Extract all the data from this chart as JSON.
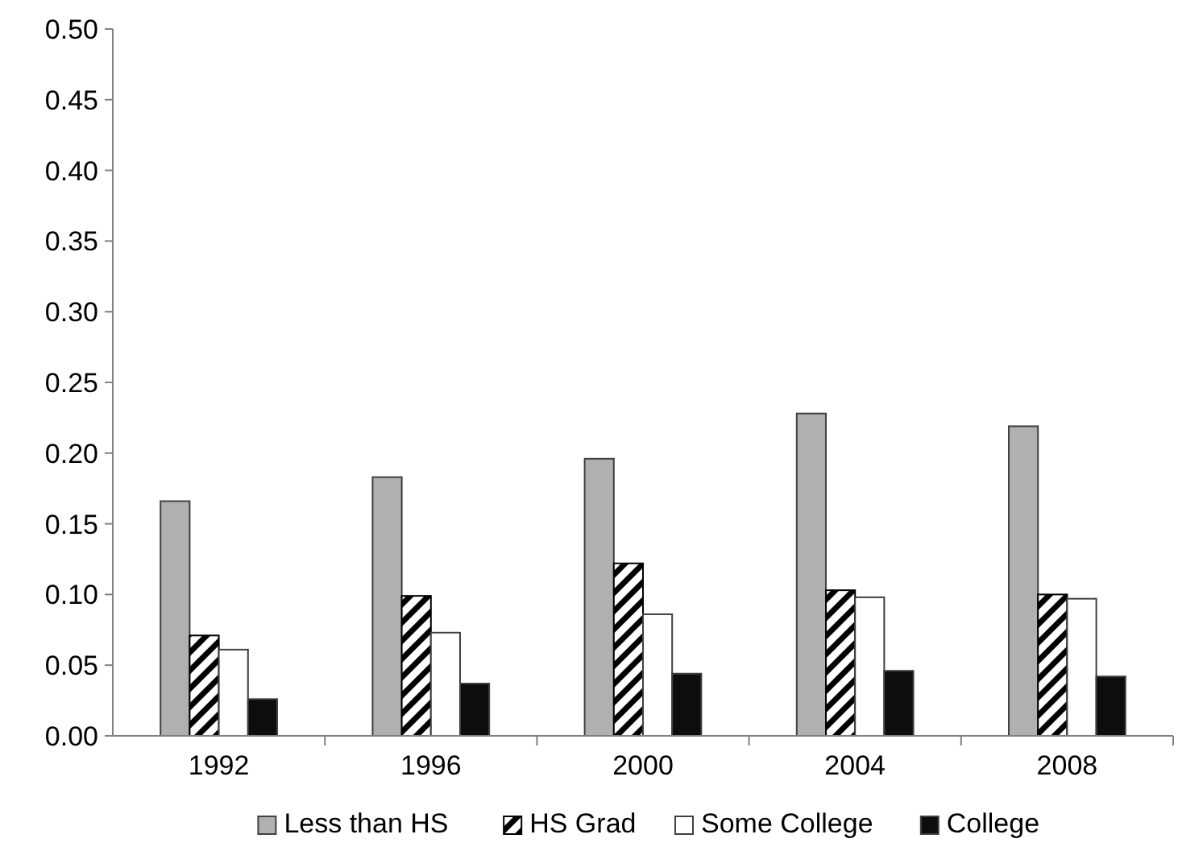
{
  "chart_data": {
    "type": "bar",
    "categories": [
      "1992",
      "1996",
      "2000",
      "2004",
      "2008"
    ],
    "series": [
      {
        "name": "Less than HS",
        "color": "#b0b0b0",
        "values": [
          0.166,
          0.183,
          0.196,
          0.228,
          0.219
        ]
      },
      {
        "name": "HS Grad",
        "color": "#000000",
        "values": [
          0.071,
          0.099,
          0.122,
          0.103,
          0.1
        ]
      },
      {
        "name": "Some College",
        "color": "#ffffff",
        "values": [
          0.061,
          0.073,
          0.086,
          0.098,
          0.097
        ]
      },
      {
        "name": "College",
        "color": "#0d0d0d",
        "values": [
          0.026,
          0.037,
          0.044,
          0.046,
          0.042
        ]
      }
    ],
    "ylim": [
      0,
      0.5
    ],
    "yticks": [
      {
        "value": 0,
        "label": "0.00"
      },
      {
        "value": 0.05,
        "label": "0.05"
      },
      {
        "value": 0.1,
        "label": "0.10"
      },
      {
        "value": 0.15,
        "label": "0.15"
      },
      {
        "value": 0.2,
        "label": "0.20"
      },
      {
        "value": 0.25,
        "label": "0.25"
      },
      {
        "value": 0.3,
        "label": "0.30"
      },
      {
        "value": 0.35,
        "label": "0.35"
      },
      {
        "value": 0.4,
        "label": "0.40"
      },
      {
        "value": 0.45,
        "label": "0.45"
      },
      {
        "value": 0.5,
        "label": "0.50"
      }
    ],
    "grid": false,
    "legend": "bottom"
  }
}
